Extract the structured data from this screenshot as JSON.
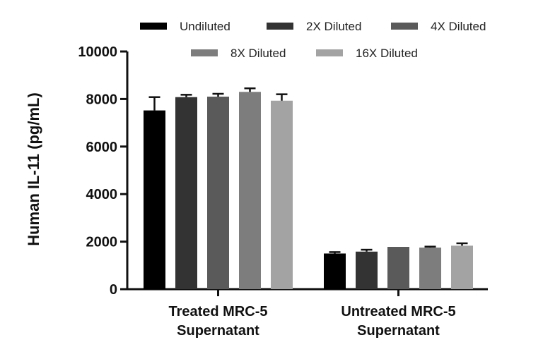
{
  "chart_data": {
    "type": "bar",
    "title": "",
    "xlabel": "",
    "ylabel": "Human IL-11 (pg/mL)",
    "ylim": [
      0,
      10000
    ],
    "y_ticks": [
      "0",
      "2000",
      "4000",
      "6000",
      "8000",
      "10000"
    ],
    "grid": false,
    "legend_position": "top",
    "categories": [
      [
        "Treated MRC-5",
        "Supernatant"
      ],
      [
        "Untreated MRC-5",
        "Supernatant"
      ]
    ],
    "series": [
      {
        "name": "Undiluted",
        "color": "#000000",
        "values": [
          7520,
          1500
        ],
        "errors": [
          560,
          60
        ]
      },
      {
        "name": "2X Diluted",
        "color": "#333333",
        "values": [
          8080,
          1580
        ],
        "errors": [
          100,
          80
        ]
      },
      {
        "name": "4X Diluted",
        "color": "#5a5a5a",
        "values": [
          8100,
          1780
        ],
        "errors": [
          120,
          0
        ]
      },
      {
        "name": "8X Diluted",
        "color": "#7d7d7d",
        "values": [
          8300,
          1750
        ],
        "errors": [
          150,
          40
        ]
      },
      {
        "name": "16X Diluted",
        "color": "#a3a3a3",
        "values": [
          7930,
          1830
        ],
        "errors": [
          270,
          100
        ]
      }
    ]
  }
}
